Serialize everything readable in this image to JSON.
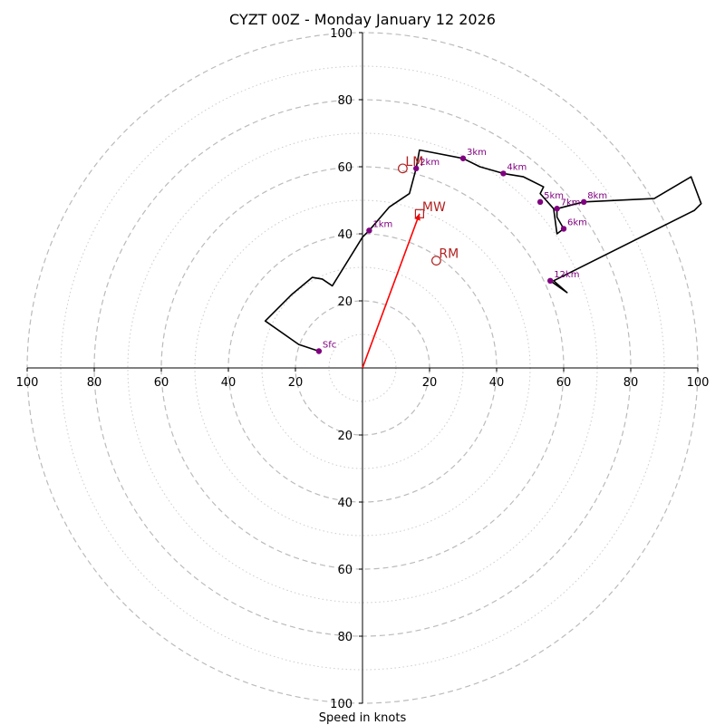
{
  "chart_data": {
    "type": "hodograph",
    "title": "CYZT 00Z - Monday January 12 2026",
    "xlabel": "Speed in knots",
    "range": [
      -100,
      100
    ],
    "ring_major": [
      20,
      40,
      60,
      80,
      100
    ],
    "ring_minor": [
      10,
      30,
      50,
      70,
      90
    ],
    "tick_values": [
      20,
      40,
      60,
      80,
      100
    ],
    "trace": [
      [
        -13,
        5
      ],
      [
        -19,
        7
      ],
      [
        -29,
        14
      ],
      [
        -21,
        22
      ],
      [
        -15,
        27
      ],
      [
        -12,
        26.5
      ],
      [
        -9,
        24.5
      ],
      [
        0,
        39
      ],
      [
        2,
        41
      ],
      [
        8,
        48
      ],
      [
        14,
        52
      ],
      [
        16,
        59.5
      ],
      [
        17,
        65
      ],
      [
        30,
        62.5
      ],
      [
        35,
        60
      ],
      [
        42,
        58
      ],
      [
        48,
        57
      ],
      [
        54,
        54
      ],
      [
        53,
        52
      ],
      [
        57,
        47.5
      ],
      [
        58,
        40
      ],
      [
        60,
        41.5
      ],
      [
        58,
        45
      ],
      [
        58,
        47.5
      ],
      [
        66,
        49.5
      ],
      [
        87,
        50.5
      ],
      [
        98,
        57
      ],
      [
        101,
        49
      ],
      [
        99,
        47
      ],
      [
        57,
        26
      ],
      [
        61,
        22.5
      ],
      [
        56,
        26
      ]
    ],
    "height_markers": [
      {
        "label": "Sfc",
        "u": -13,
        "v": 5
      },
      {
        "label": "1km",
        "u": 2,
        "v": 41
      },
      {
        "label": "2km",
        "u": 16,
        "v": 59.5
      },
      {
        "label": "3km",
        "u": 30,
        "v": 62.5
      },
      {
        "label": "4km",
        "u": 42,
        "v": 58
      },
      {
        "label": "5km",
        "u": 53,
        "v": 49.5
      },
      {
        "label": "6km",
        "u": 60,
        "v": 41.5
      },
      {
        "label": "7km",
        "u": 58,
        "v": 47.5
      },
      {
        "label": "8km",
        "u": 66,
        "v": 49.5
      },
      {
        "label": "12km",
        "u": 56,
        "v": 26
      }
    ],
    "motions": [
      {
        "label": "LM",
        "u": 12,
        "v": 59.5,
        "shape": "circle"
      },
      {
        "label": "MW",
        "u": 17,
        "v": 46,
        "shape": "square"
      },
      {
        "label": "RM",
        "u": 22,
        "v": 32,
        "shape": "circle"
      }
    ],
    "shear_vector": {
      "from": [
        0,
        0
      ],
      "to": [
        17,
        46
      ]
    }
  },
  "colors": {
    "trace": "#000000",
    "markers": "#800080",
    "motion": "#b22222",
    "vector": "#ff0000",
    "grid": "#bbbbbb"
  }
}
